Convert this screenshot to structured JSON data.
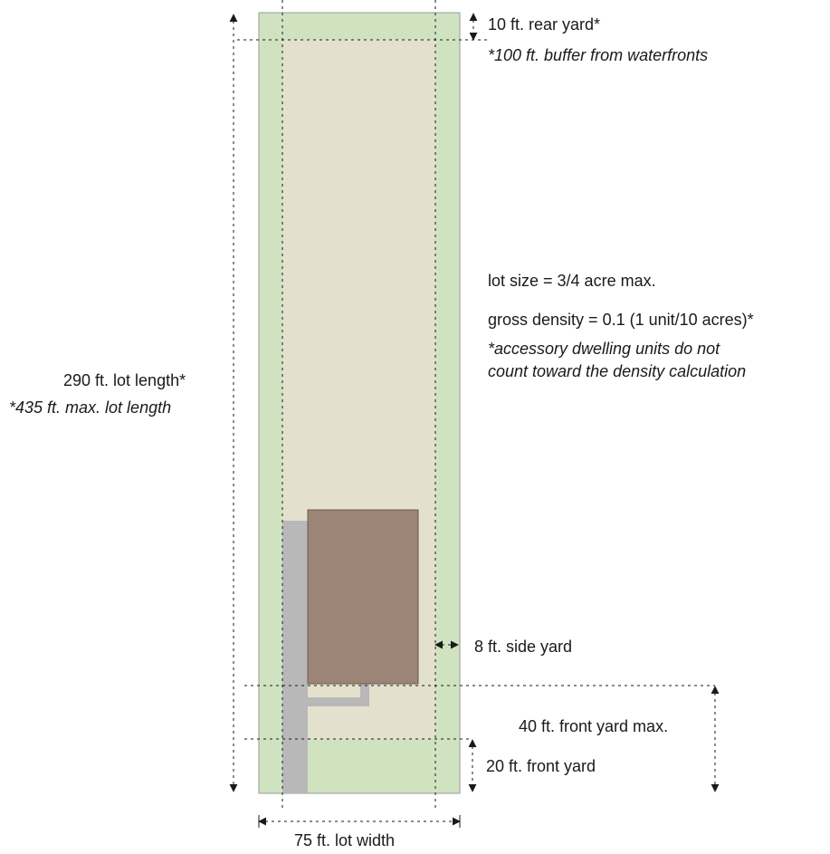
{
  "colors": {
    "lot_fill": "#cfe3c1",
    "lot_edge": "#9a9a9a",
    "buildable_fill": "#e3e1ce",
    "house_fill": "#9c8576",
    "driveway_fill": "#b8b8b8",
    "line": "#1a1a1a"
  },
  "icons": {
    "dimension_arrow": "double-headed-arrow"
  },
  "labels": {
    "rear_yard": "10 ft. rear yard*",
    "rear_yard_note": "*100 ft. buffer from waterfronts",
    "lot_size": "lot size = 3/4 acre max.",
    "gross_density": "gross density = 0.1 (1 unit/10 acres)*",
    "adu_note_1": "*accessory dwelling units do not",
    "adu_note_2": "count toward the density calculation",
    "lot_length": "290 ft. lot length*",
    "lot_length_max": "*435 ft. max. lot length",
    "side_yard": "8 ft. side yard",
    "front_yard_max": "40 ft. front yard max.",
    "front_yard": "20 ft. front yard",
    "lot_width": "75 ft. lot width"
  }
}
